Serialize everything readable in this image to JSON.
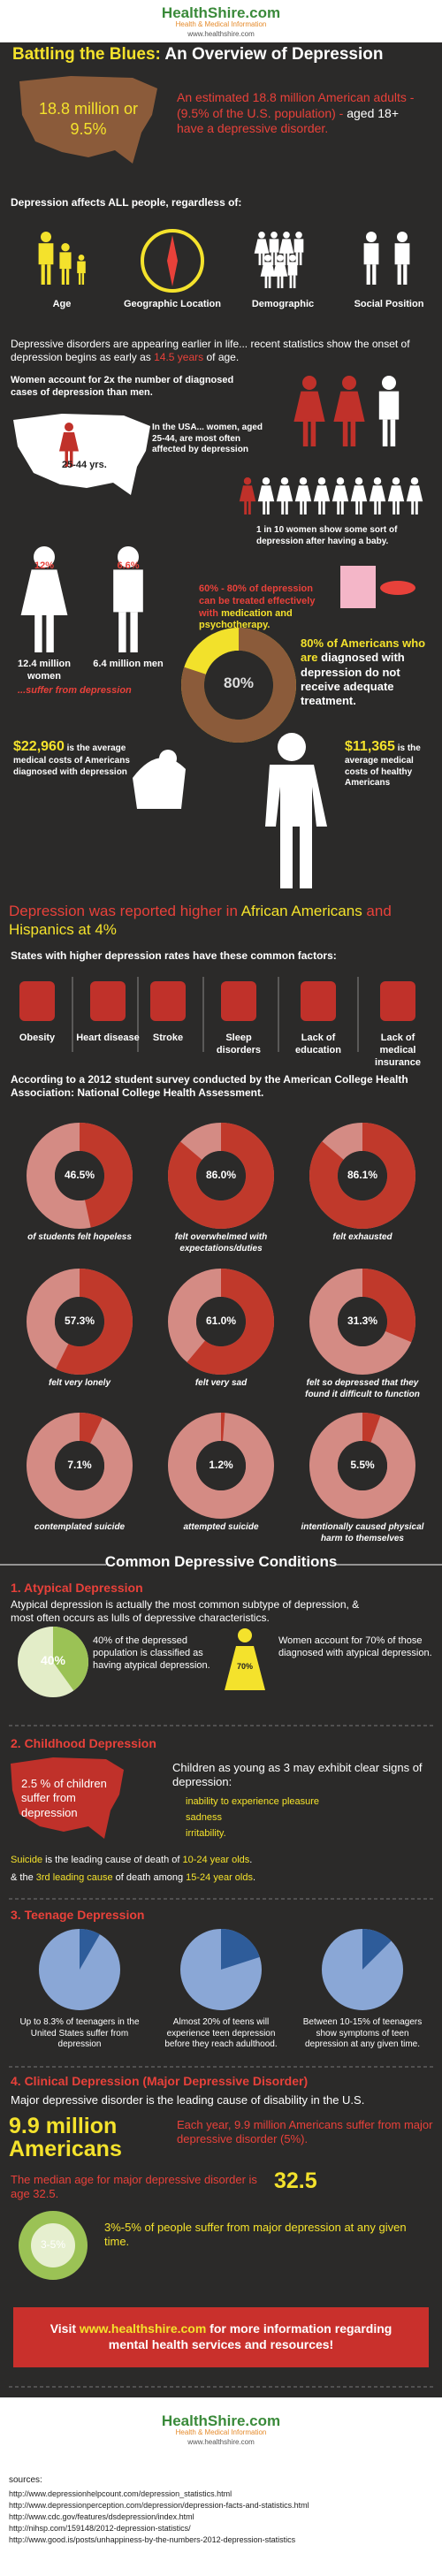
{
  "header": {
    "logo": "HealthShire.com",
    "tagline": "Health & Medical Information",
    "url": "www.healthshire.com"
  },
  "title": {
    "main": "Battling the Blues:",
    "rest": " An Overview of Depression"
  },
  "intro": {
    "map_text": "18.8 million or 9.5%",
    "parts": [
      "An estimated 18.8 million American adults - (9.5% of the U.S. population) - ",
      "aged 18+",
      " have a depressive disorder."
    ]
  },
  "affects": {
    "heading": "Depression affects ALL people, regardless of:",
    "items": [
      "Age",
      "Geographic Location",
      "Demographic",
      "Social Position"
    ]
  },
  "onset": [
    "Depressive disorders are appearing earlier in life... recent statistics show the onset of depression begins as early as ",
    "14.5 years",
    " of age."
  ],
  "women": {
    "heading": "Women account for 2x the number of diagnosed cases of depression than men.",
    "map_label": "25-44 yrs.",
    "usa": "In the USA... women, aged 25-44, are most often affected by depression",
    "one_in_ten": "1 in 10 women show some sort of depression after having a baby.",
    "female_pct": "12%",
    "male_pct": "6.6%",
    "female_count": "12.4 million women",
    "male_count": "6.4 million men",
    "suffer": "...suffer from depression"
  },
  "treatable": [
    "60% - 80% of depression can be treated effectively with ",
    "medication and psychotherapy."
  ],
  "untreated": {
    "value": 80,
    "label": "80%",
    "parts": [
      "80% of Americans who are ",
      "diagnosed with depression do not receive adequate treatment."
    ]
  },
  "costs": {
    "depressed_amount": "$22,960",
    "depressed_text": " is the average medical costs of Americans diagnosed with depression",
    "healthy_amount": "$11,365",
    "healthy_text": " is the average medical costs of healthy Americans"
  },
  "african": [
    "Depression was reported higher in ",
    "African Americans",
    " and ",
    "Hispanics at 4%"
  ],
  "factors": {
    "heading": "States with higher depression rates have these common factors:",
    "items": [
      "Obesity",
      "Heart disease",
      "Stroke",
      "Sleep disorders",
      "Lack of education",
      "Lack of medical insurance"
    ]
  },
  "survey": {
    "heading": "According to a 2012 student survey conducted by the American College Health Association: National College Health Assessment.",
    "items": [
      {
        "value": 46.5,
        "label": "46.5%",
        "caption": "of students felt hopeless"
      },
      {
        "value": 86.0,
        "label": "86.0%",
        "caption": "felt overwhelmed with expectations/duties"
      },
      {
        "value": 86.1,
        "label": "86.1%",
        "caption": "felt exhausted"
      },
      {
        "value": 57.3,
        "label": "57.3%",
        "caption": "felt very lonely"
      },
      {
        "value": 61.0,
        "label": "61.0%",
        "caption": "felt very sad"
      },
      {
        "value": 31.3,
        "label": "31.3%",
        "caption": "felt so depressed that they found it difficult to function"
      },
      {
        "value": 7.1,
        "label": "7.1%",
        "caption": "contemplated suicide"
      },
      {
        "value": 1.2,
        "label": "1.2%",
        "caption": "attempted suicide"
      },
      {
        "value": 5.5,
        "label": "5.5%",
        "caption": "intentionally caused physical harm to themselves"
      }
    ]
  },
  "conditions_heading": "Common Depressive Conditions",
  "atypical": {
    "title": "1. Atypical Depression",
    "intro": "Atypical depression is actually the most common subtype of depression, & most often occurs as lulls of depressive characteristics.",
    "pie": {
      "value": 40,
      "label": "40%"
    },
    "pie_text": "40% of the depressed population is classified as having atypical depression.",
    "women_label": "70%",
    "women_text": "Women account for 70% of those diagnosed with atypical depression."
  },
  "childhood": {
    "title": "2. Childhood Depression",
    "map_text": "2.5 % of children suffer from depression",
    "lead": "Children as young as 3 may exhibit clear signs of depression:",
    "signs": [
      "inability to experience pleasure",
      "sadness",
      "irritability."
    ],
    "cause1": [
      "Suicide",
      " is the leading cause of death of ",
      "10-24 year olds",
      "."
    ],
    "cause2": [
      "& the ",
      "3rd leading cause",
      " of death among ",
      "15-24 year olds",
      "."
    ]
  },
  "teenage": {
    "title": "3. Teenage Depression",
    "pies": [
      {
        "value": 8.3,
        "caption": "Up to 8.3% of teenagers in the United States suffer from depression"
      },
      {
        "value": 20,
        "caption": "Almost 20% of teens will experience teen depression before they reach adulthood."
      },
      {
        "value": 12.5,
        "caption": "Between 10-15% of teenagers show symptoms of teen depression at any given time."
      }
    ]
  },
  "clinical": {
    "title": "4. Clinical Depression (Major Depressive Disorder)",
    "lead": "Major depressive disorder is the leading cause of disability in the U.S.",
    "big": "9.9 million Americans",
    "big_text": "Each year, 9.9 million Americans suffer from major depressive disorder (5%).",
    "median": "The median age for major depressive disorder is age 32.5.",
    "median_big": "32.5",
    "ring": "3-5%",
    "ring_text": "3%-5% of people suffer from major depression at any given time."
  },
  "banner": [
    "Visit ",
    "www.healthshire.com",
    " for more information regarding mental health services and resources!"
  ],
  "footer": {
    "logo": "HealthShire.com",
    "tagline": "Health & Medical Information",
    "url": "www.healthshire.com",
    "sources_heading": "sources:",
    "sources": [
      "http://www.depressionhelpcount.com/depression_statistics.html",
      "http://www.depressionperception.com/depression/depression-facts-and-statistics.html",
      "http://www.cdc.gov/features/dsdepression/index.html",
      "http://nihsp.com/159148/2012-depression-statistics/",
      "http://www.good.is/posts/unhappiness-by-the-numbers-2012-depression-statistics"
    ]
  }
}
